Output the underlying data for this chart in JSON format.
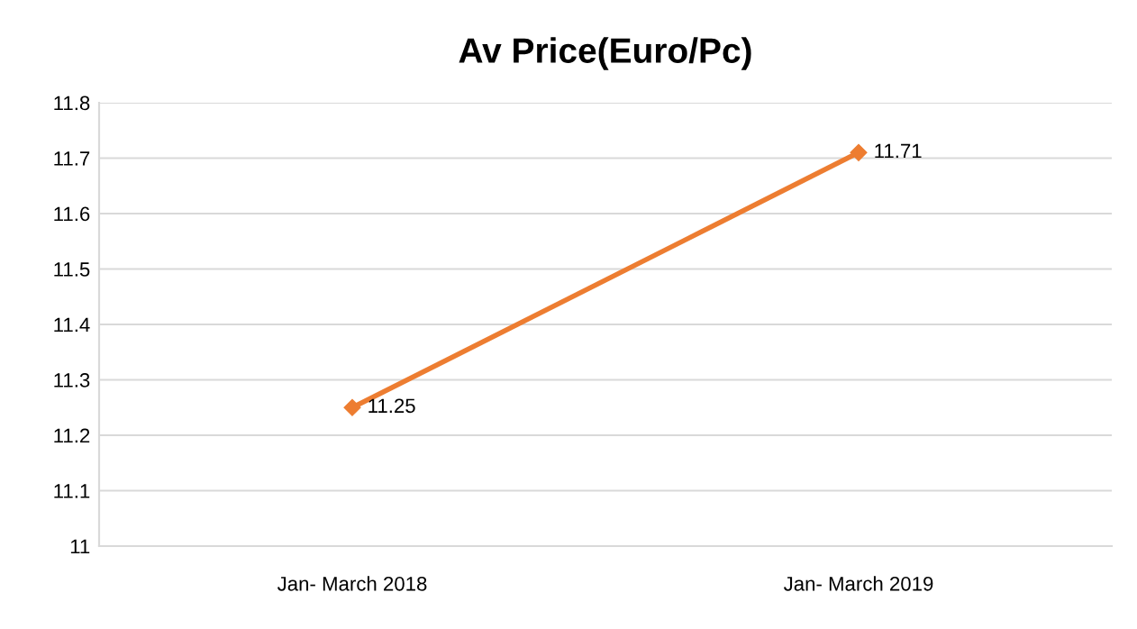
{
  "chart_data": {
    "type": "line",
    "title": "Av Price(Euro/Pc)",
    "categories": [
      "Jan- March 2018",
      "Jan- March 2019"
    ],
    "series": [
      {
        "color": "#ed7d31",
        "values": [
          11.25,
          11.71
        ]
      }
    ],
    "ylim": [
      11,
      11.8
    ],
    "yticks": [
      11,
      11.1,
      11.2,
      11.3,
      11.4,
      11.5,
      11.6,
      11.7,
      11.8
    ],
    "grid": "y",
    "marker": "diamond",
    "line_style": "solid",
    "data_labels": true,
    "legend": false
  }
}
